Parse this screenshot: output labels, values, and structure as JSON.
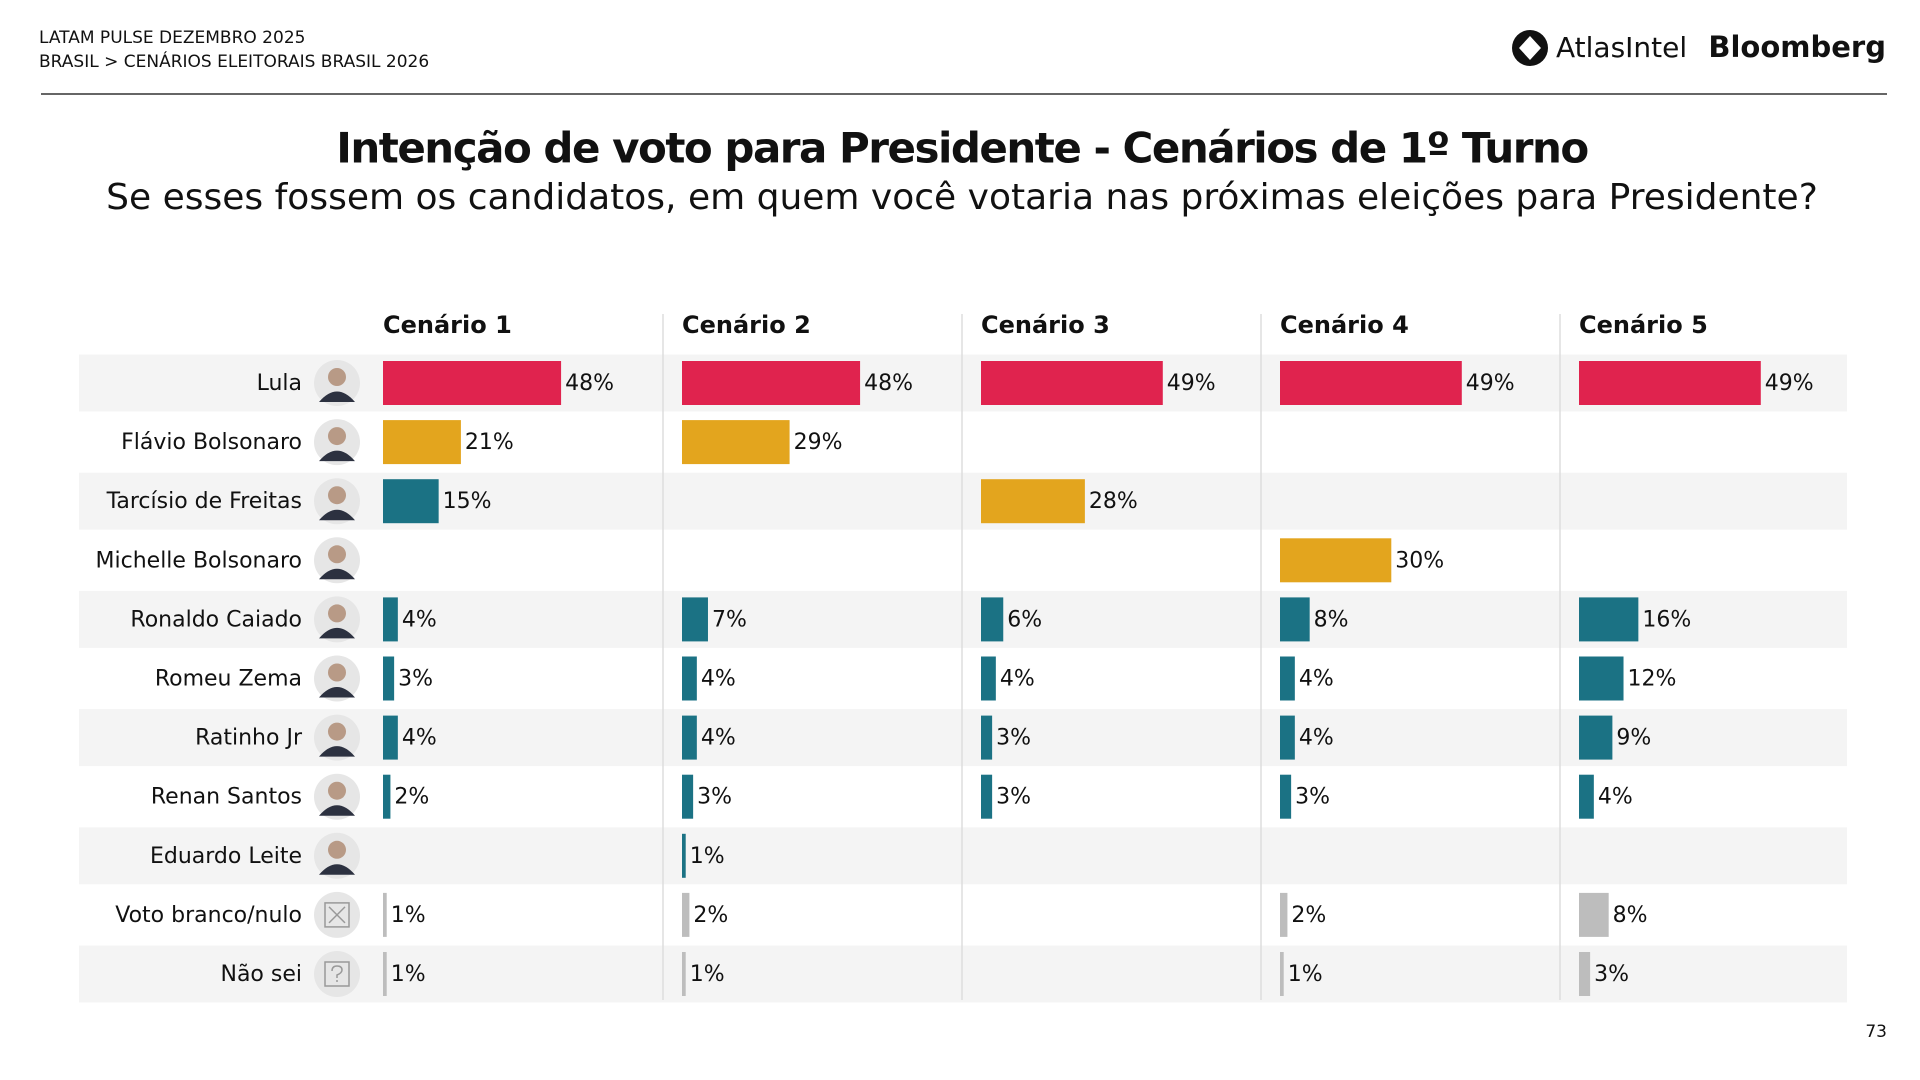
{
  "header": {
    "line1": "LATAM PULSE DEZEMBRO 2025",
    "line2": "BRASIL > CENÁRIOS ELEITORAIS BRASIL 2026",
    "logo1": "AtlasIntel",
    "logo2": "Bloomberg"
  },
  "page_number": "73",
  "chart_data": {
    "type": "bar",
    "title": "Intenção de voto para Presidente - Cenários de 1º Turno",
    "subtitle": "Se esses fossem os candidatos, em quem você votaria nas próximas eleições para Presidente?",
    "categories": [
      "Lula",
      "Flávio Bolsonaro",
      "Tarcísio de Freitas",
      "Michelle Bolsonaro",
      "Ronaldo Caiado",
      "Romeu Zema",
      "Ratinho Jr",
      "Renan Santos",
      "Eduardo Leite",
      "Voto branco/nulo",
      "Não sei"
    ],
    "series": [
      {
        "name": "Cenário 1",
        "values": [
          48,
          21,
          15,
          null,
          4,
          3,
          4,
          2,
          null,
          1,
          1
        ],
        "value_labels": [
          "48%",
          "21%",
          "15%",
          null,
          "4%",
          "3%",
          "4%",
          "2%",
          null,
          "1%",
          "1%"
        ],
        "colors": [
          "#e0234e",
          "#e3a51e",
          "#1b7284",
          null,
          "#1b7284",
          "#1b7284",
          "#1b7284",
          "#1b7284",
          null,
          "#bdbdbd",
          "#bdbdbd"
        ]
      },
      {
        "name": "Cenário 2",
        "values": [
          48,
          29,
          null,
          null,
          7,
          4,
          4,
          3,
          1,
          2,
          1
        ],
        "value_labels": [
          "48%",
          "29%",
          null,
          null,
          "7%",
          "4%",
          "4%",
          "3%",
          "1%",
          "2%",
          "1%"
        ],
        "colors": [
          "#e0234e",
          "#e3a51e",
          null,
          null,
          "#1b7284",
          "#1b7284",
          "#1b7284",
          "#1b7284",
          "#1b7284",
          "#bdbdbd",
          "#bdbdbd"
        ]
      },
      {
        "name": "Cenário 3",
        "values": [
          49,
          null,
          28,
          null,
          6,
          4,
          3,
          3,
          null,
          null,
          null
        ],
        "value_labels": [
          "49%",
          null,
          "28%",
          null,
          "6%",
          "4%",
          "3%",
          "3%",
          null,
          null,
          null
        ],
        "colors": [
          "#e0234e",
          null,
          "#e3a51e",
          null,
          "#1b7284",
          "#1b7284",
          "#1b7284",
          "#1b7284",
          null,
          null,
          null
        ]
      },
      {
        "name": "Cenário 4",
        "values": [
          49,
          null,
          null,
          30,
          8,
          4,
          4,
          3,
          null,
          2,
          1
        ],
        "value_labels": [
          "49%",
          null,
          null,
          "30%",
          "8%",
          "4%",
          "4%",
          "3%",
          null,
          "2%",
          "1%"
        ],
        "colors": [
          "#e0234e",
          null,
          null,
          "#e3a51e",
          "#1b7284",
          "#1b7284",
          "#1b7284",
          "#1b7284",
          null,
          "#bdbdbd",
          "#bdbdbd"
        ]
      },
      {
        "name": "Cenário 5",
        "values": [
          49,
          null,
          null,
          null,
          16,
          12,
          9,
          4,
          null,
          8,
          3
        ],
        "value_labels": [
          "49%",
          null,
          null,
          null,
          "16%",
          "12%",
          "9%",
          "4%",
          null,
          "8%",
          "3%"
        ],
        "colors": [
          "#e0234e",
          null,
          null,
          null,
          "#1b7284",
          "#1b7284",
          "#1b7284",
          "#1b7284",
          null,
          "#bdbdbd",
          "#bdbdbd"
        ]
      }
    ]
  }
}
